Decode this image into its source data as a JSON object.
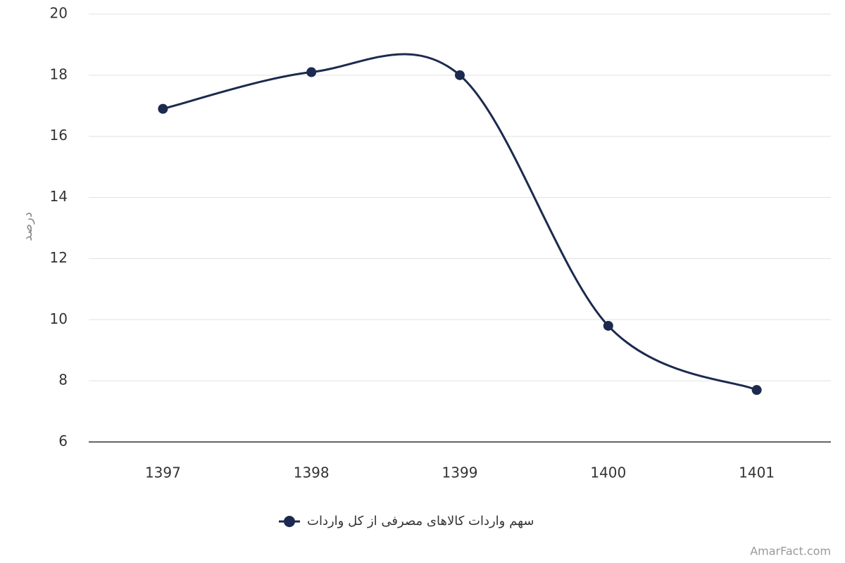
{
  "chart_data": {
    "type": "line",
    "y_label": "درصد",
    "categories": [
      "1397",
      "1398",
      "1399",
      "1400",
      "1401"
    ],
    "series": [
      {
        "name": "سهم واردات کالاهای مصرفی از کل واردات",
        "color": "#1b2a4e",
        "values": [
          16.9,
          18.1,
          18.0,
          9.8,
          7.7
        ]
      }
    ],
    "ylim": [
      6,
      20
    ],
    "yticks": [
      6,
      8,
      10,
      12,
      14,
      16,
      18,
      20
    ],
    "grid": true,
    "legend": "bottom",
    "credit": "AmarFact.com"
  }
}
